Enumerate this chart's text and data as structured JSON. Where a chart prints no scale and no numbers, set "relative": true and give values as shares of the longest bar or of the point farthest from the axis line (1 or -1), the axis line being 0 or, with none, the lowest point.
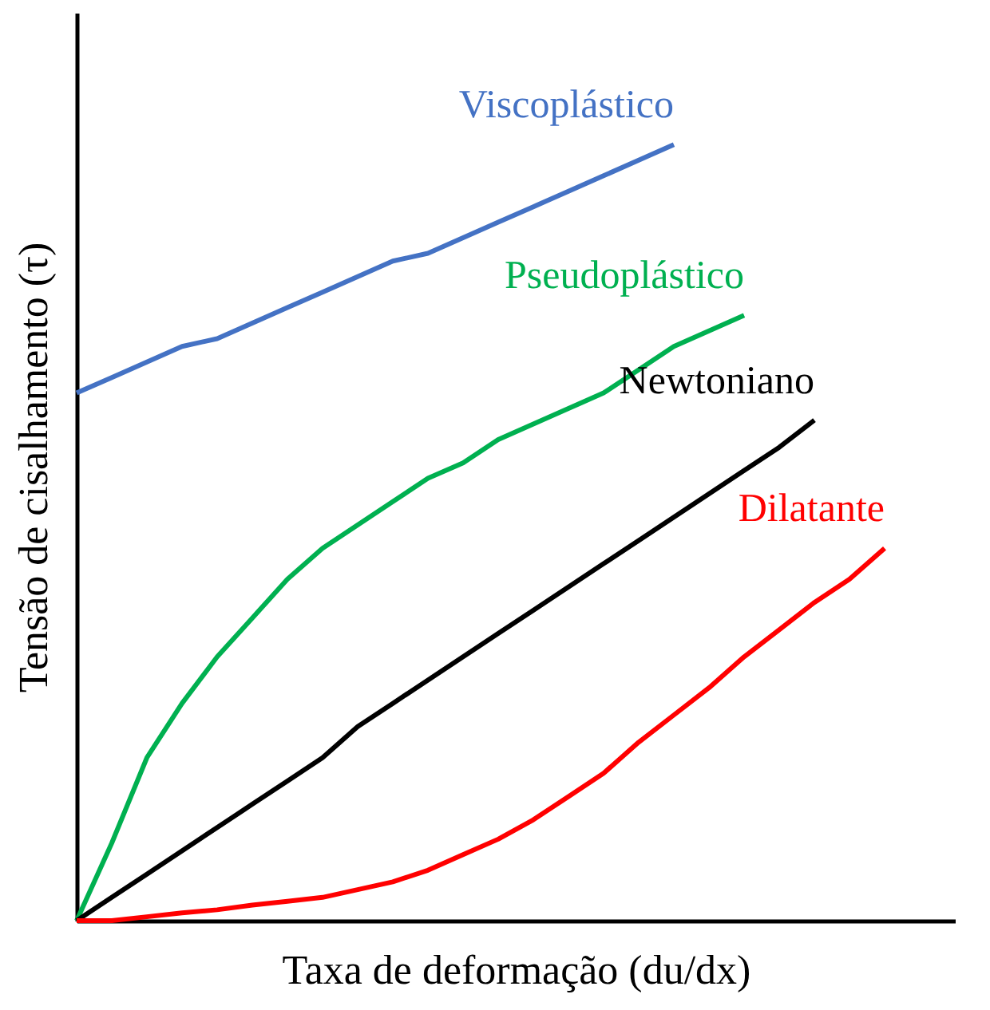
{
  "chart_data": {
    "type": "line",
    "relative": true,
    "xlabel": "Taxa de deformação (du/dx)",
    "ylabel": "Tensão de cisalhamento (τ)",
    "legend": false,
    "marker": "none",
    "line_style": "solid",
    "categories": [
      null,
      null,
      null,
      null,
      null,
      null,
      null,
      null,
      null,
      null,
      null,
      null,
      null,
      null,
      null,
      null,
      null,
      null,
      null,
      null,
      null,
      null,
      null,
      null,
      null,
      null
    ],
    "series": [
      {
        "name": "Viscoplástico",
        "color": "#4472c4",
        "values": [
          0.68,
          0.7,
          0.72,
          0.74,
          0.75,
          0.77,
          0.79,
          0.81,
          0.83,
          0.85,
          0.86,
          0.88,
          0.9,
          0.92,
          0.94,
          0.96,
          0.98,
          1.0,
          null,
          null,
          null,
          null,
          null,
          null,
          null,
          null
        ]
      },
      {
        "name": "Pseudoplástico",
        "color": "#00b050",
        "values": [
          0,
          0.1,
          0.21,
          0.28,
          0.34,
          0.39,
          0.44,
          0.48,
          0.51,
          0.54,
          0.57,
          0.59,
          0.62,
          0.64,
          0.66,
          0.68,
          0.71,
          0.74,
          0.76,
          0.78,
          null,
          null,
          null,
          null,
          null,
          null
        ]
      },
      {
        "name": "Newtoniano",
        "color": "#000000",
        "values": [
          0,
          0.03,
          0.06,
          0.09,
          0.12,
          0.15,
          0.18,
          0.21,
          0.25,
          0.28,
          0.31,
          0.34,
          0.37,
          0.4,
          0.43,
          0.46,
          0.49,
          0.52,
          0.55,
          0.58,
          0.61,
          0.645,
          null,
          null,
          null,
          null
        ]
      },
      {
        "name": "Dilatante",
        "color": "#ff0000",
        "values": [
          0,
          0,
          0.005,
          0.01,
          0.014,
          0.02,
          0.025,
          0.03,
          0.04,
          0.05,
          0.065,
          0.085,
          0.105,
          0.13,
          0.16,
          0.19,
          0.23,
          0.265,
          0.3,
          0.34,
          0.375,
          0.41,
          0.44,
          0.48,
          null,
          null
        ]
      }
    ]
  }
}
